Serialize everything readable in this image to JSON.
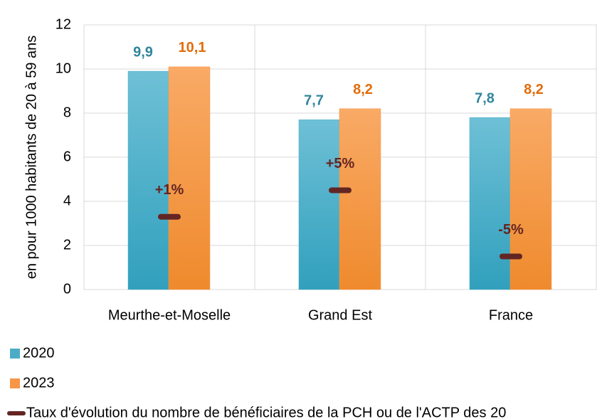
{
  "chart_data": {
    "type": "bar",
    "y_axis_label": "en pour 1000 habitants de 20 à 59 ans",
    "categories": [
      "Meurthe-et-Moselle",
      "Grand Est",
      "France"
    ],
    "series": [
      {
        "name": "2020",
        "color": "#4bacc6",
        "label_color": "#31859c",
        "values": [
          9.9,
          7.7,
          7.8
        ],
        "value_labels": [
          "9,9",
          "7,7",
          "7,8"
        ]
      },
      {
        "name": "2023",
        "color": "#f79646",
        "label_color": "#e46c0a",
        "values": [
          10.1,
          8.2,
          8.2
        ],
        "value_labels": [
          "10,1",
          "8,2",
          "8,2"
        ]
      },
      {
        "name": "Taux d'évolution du nombre de bénéficiaires de la PCH ou de l'ACTP des 20",
        "type": "marker",
        "axis": "y2",
        "color": "#632523",
        "values": [
          1,
          5,
          -5
        ],
        "value_labels": [
          "+1%",
          "+5%",
          "-5%"
        ]
      }
    ],
    "ylim": [
      0,
      12
    ],
    "yticks": [
      0,
      2,
      4,
      6,
      8,
      10,
      12
    ],
    "y2lim": [
      -10,
      30
    ],
    "grid": true
  }
}
